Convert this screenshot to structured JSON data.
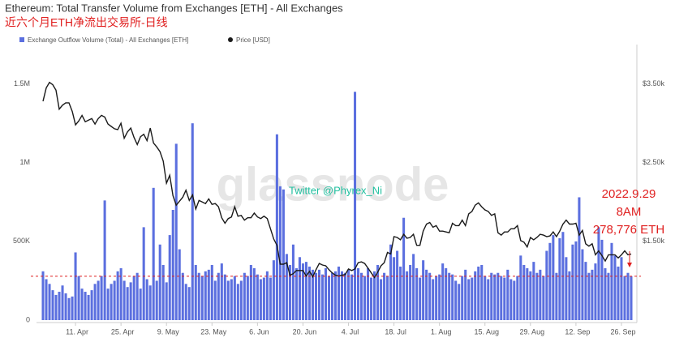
{
  "chart_data": {
    "type": "bar-line",
    "title": "Ethereum: Total Transfer Volume from Exchanges [ETH] - All Exchanges",
    "subtitle": "近六个月ETH净流出交易所-日线",
    "watermark": "glassnode",
    "overlay_text": "Twitter @Phyrex_Ni",
    "annotation": [
      "2022.9.29",
      "8AM",
      "278,776 ETH"
    ],
    "categories": [
      null,
      null,
      null,
      null,
      null,
      null,
      null,
      null,
      null,
      null,
      "11. Apr",
      null,
      null,
      null,
      null,
      null,
      null,
      null,
      null,
      null,
      null,
      null,
      null,
      null,
      "25. Apr",
      null,
      null,
      null,
      null,
      null,
      null,
      null,
      null,
      null,
      null,
      null,
      null,
      null,
      "9. May",
      null,
      null,
      null,
      null,
      null,
      null,
      null,
      null,
      null,
      null,
      null,
      null,
      null,
      "23. May",
      null,
      null,
      null,
      null,
      null,
      null,
      null,
      null,
      null,
      null,
      null,
      null,
      null,
      "6. Jun",
      null,
      null,
      null,
      null,
      null,
      null,
      null,
      null,
      null,
      null,
      null,
      null,
      null,
      "20. Jun",
      null,
      null,
      null,
      null,
      null,
      null,
      null,
      null,
      null,
      null,
      null,
      null,
      null,
      "4. Jul",
      null,
      null,
      null,
      null,
      null,
      null,
      null,
      null,
      null,
      null,
      null,
      null,
      null,
      "18. Jul",
      null,
      null,
      null,
      null,
      null,
      null,
      null,
      null,
      null,
      null,
      null,
      null,
      null,
      "1. Aug",
      null,
      null,
      null,
      null,
      null,
      null,
      null,
      null,
      null,
      null,
      null,
      null,
      null,
      "15. Aug",
      null,
      null,
      null,
      null,
      null,
      null,
      null,
      null,
      null,
      null,
      null,
      null,
      null,
      "29. Aug",
      null,
      null,
      null,
      null,
      null,
      null,
      null,
      null,
      null,
      null,
      null,
      null,
      null,
      "12. Sep",
      null,
      null,
      null,
      null,
      null,
      null,
      null,
      null,
      null,
      null,
      null,
      null,
      null,
      "26. Sep",
      null,
      null,
      null
    ],
    "series": [
      {
        "name": "Exchange Outflow Volume (Total) - All Exchanges [ETH]",
        "type": "bar",
        "color": "#5b6fdf",
        "values": [
          310000,
          260000,
          230000,
          190000,
          160000,
          180000,
          220000,
          170000,
          140000,
          150000,
          430000,
          280000,
          200000,
          180000,
          160000,
          190000,
          230000,
          250000,
          280000,
          760000,
          200000,
          230000,
          250000,
          310000,
          330000,
          250000,
          210000,
          240000,
          280000,
          300000,
          200000,
          590000,
          260000,
          220000,
          840000,
          250000,
          480000,
          350000,
          240000,
          540000,
          700000,
          1120000,
          450000,
          300000,
          230000,
          210000,
          1250000,
          350000,
          300000,
          280000,
          310000,
          320000,
          350000,
          250000,
          300000,
          360000,
          290000,
          250000,
          260000,
          280000,
          230000,
          250000,
          300000,
          280000,
          350000,
          330000,
          290000,
          260000,
          270000,
          310000,
          270000,
          380000,
          1180000,
          850000,
          830000,
          420000,
          350000,
          480000,
          330000,
          400000,
          360000,
          370000,
          340000,
          320000,
          300000,
          320000,
          290000,
          330000,
          280000,
          300000,
          310000,
          340000,
          310000,
          300000,
          320000,
          290000,
          1450000,
          330000,
          300000,
          280000,
          330000,
          270000,
          310000,
          350000,
          260000,
          300000,
          280000,
          480000,
          400000,
          440000,
          340000,
          650000,
          310000,
          350000,
          420000,
          330000,
          270000,
          380000,
          320000,
          300000,
          260000,
          280000,
          290000,
          360000,
          330000,
          300000,
          290000,
          250000,
          230000,
          280000,
          320000,
          260000,
          270000,
          310000,
          340000,
          350000,
          280000,
          260000,
          300000,
          290000,
          300000,
          280000,
          270000,
          320000,
          260000,
          250000,
          280000,
          410000,
          350000,
          330000,
          310000,
          370000,
          300000,
          320000,
          280000,
          440000,
          490000,
          540000,
          300000,
          520000,
          560000,
          400000,
          310000,
          480000,
          500000,
          780000,
          450000,
          370000,
          300000,
          320000,
          360000,
          590000,
          510000,
          330000,
          300000,
          490000,
          410000,
          340000,
          400000,
          280000,
          300000,
          278776
        ]
      },
      {
        "name": "Price [USD]",
        "type": "line",
        "axis": "y2",
        "color": "#1a1a1a",
        "values": [
          3280,
          3450,
          3520,
          3490,
          3420,
          3180,
          3230,
          3260,
          3260,
          3150,
          2980,
          3030,
          3100,
          3020,
          3040,
          3060,
          2990,
          3060,
          3100,
          3080,
          2990,
          2960,
          2930,
          2920,
          3000,
          2810,
          2890,
          2940,
          2820,
          2730,
          2830,
          2860,
          2780,
          2940,
          2750,
          2700,
          2640,
          2520,
          2240,
          2340,
          2080,
          1960,
          2010,
          2060,
          2150,
          2020,
          2090,
          1910,
          2020,
          2000,
          1980,
          2040,
          1970,
          1980,
          1940,
          1800,
          1730,
          1790,
          1810,
          1940,
          1820,
          1830,
          1770,
          1800,
          1800,
          1860,
          1810,
          1790,
          1820,
          1790,
          1660,
          1530,
          1450,
          1210,
          1210,
          1230,
          1070,
          1090,
          1130,
          1130,
          1130,
          1060,
          1120,
          1050,
          1140,
          1220,
          1200,
          1190,
          1140,
          1100,
          1070,
          1060,
          1070,
          1080,
          1150,
          1130,
          1150,
          1230,
          1240,
          1220,
          1160,
          1100,
          1040,
          1110,
          1190,
          1230,
          1360,
          1340,
          1560,
          1550,
          1520,
          1590,
          1540,
          1550,
          1590,
          1450,
          1450,
          1630,
          1720,
          1740,
          1680,
          1700,
          1630,
          1630,
          1620,
          1610,
          1730,
          1700,
          1700,
          1770,
          1700,
          1850,
          1880,
          1960,
          1990,
          1940,
          1900,
          1880,
          1830,
          1850,
          1610,
          1580,
          1620,
          1620,
          1660,
          1660,
          1700,
          1510,
          1490,
          1430,
          1550,
          1520,
          1550,
          1590,
          1580,
          1560,
          1570,
          1620,
          1560,
          1630,
          1720,
          1770,
          1720,
          1720,
          1730,
          1580,
          1640,
          1470,
          1440,
          1470,
          1330,
          1380,
          1320,
          1250,
          1330,
          1330,
          1330,
          1290,
          1330,
          1380,
          1330,
          1340
        ]
      }
    ],
    "ylim": [
      0,
      1750000
    ],
    "yticks": [
      0,
      {
        "value": 500000,
        "label": "500K"
      },
      {
        "value": 1000000,
        "label": "1M"
      },
      {
        "value": 1500000,
        "label": "1.5M"
      }
    ],
    "y2lim": [
      500,
      4000
    ],
    "y2ticks": [
      {
        "value": 1500,
        "label": "$1.50k"
      },
      {
        "value": 2500,
        "label": "$2.50k"
      },
      {
        "value": 3500,
        "label": "$3.50k"
      }
    ],
    "grid": false
  }
}
